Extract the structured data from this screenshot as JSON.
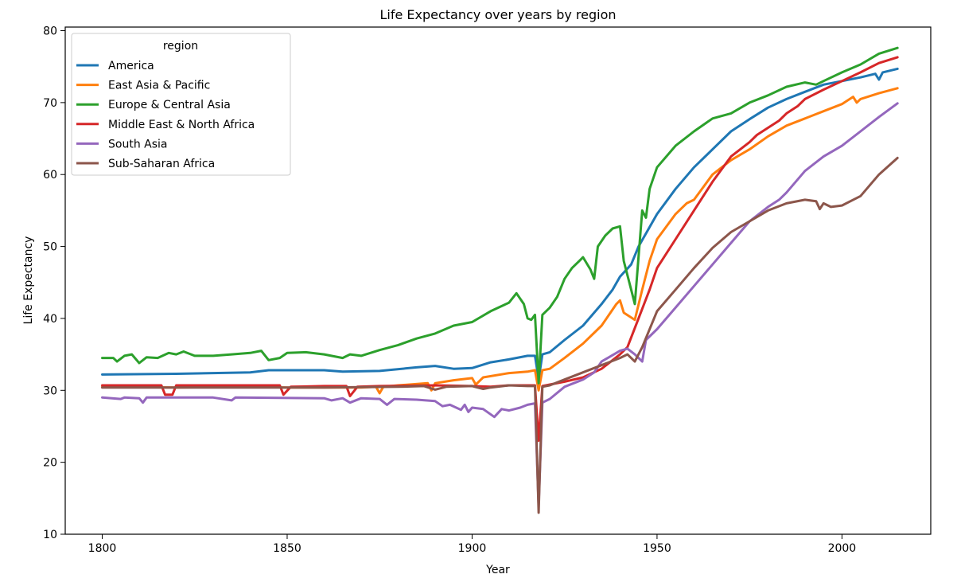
{
  "chart_data": {
    "type": "line",
    "title": "Life Expectancy over years by region",
    "xlabel": "Year",
    "ylabel": "Life Expectancy",
    "xlim": [
      1790,
      2024
    ],
    "ylim": [
      10,
      80.5
    ],
    "xticks": [
      1800,
      1850,
      1900,
      1950,
      2000
    ],
    "yticks": [
      10,
      20,
      30,
      40,
      50,
      60,
      70,
      80
    ],
    "grid": false,
    "legend": {
      "title": "region",
      "placement": "top-left"
    },
    "series": [
      {
        "name": "America",
        "color": "#1f77b4",
        "points": [
          [
            1800,
            32.2
          ],
          [
            1820,
            32.3
          ],
          [
            1840,
            32.5
          ],
          [
            1845,
            32.8
          ],
          [
            1860,
            32.8
          ],
          [
            1865,
            32.6
          ],
          [
            1875,
            32.7
          ],
          [
            1885,
            33.2
          ],
          [
            1890,
            33.4
          ],
          [
            1895,
            33.0
          ],
          [
            1900,
            33.1
          ],
          [
            1905,
            33.9
          ],
          [
            1910,
            34.3
          ],
          [
            1915,
            34.8
          ],
          [
            1917,
            34.8
          ],
          [
            1918,
            31.5
          ],
          [
            1919,
            35.0
          ],
          [
            1921,
            35.3
          ],
          [
            1925,
            37.0
          ],
          [
            1930,
            39.0
          ],
          [
            1935,
            42.0
          ],
          [
            1938,
            44.0
          ],
          [
            1940,
            45.8
          ],
          [
            1943,
            47.5
          ],
          [
            1945,
            50.0
          ],
          [
            1950,
            54.5
          ],
          [
            1955,
            58.0
          ],
          [
            1960,
            61.0
          ],
          [
            1965,
            63.5
          ],
          [
            1970,
            66.0
          ],
          [
            1975,
            67.7
          ],
          [
            1980,
            69.3
          ],
          [
            1985,
            70.5
          ],
          [
            1990,
            71.5
          ],
          [
            1995,
            72.5
          ],
          [
            2000,
            73.0
          ],
          [
            2005,
            73.5
          ],
          [
            2009,
            74.0
          ],
          [
            2010,
            73.2
          ],
          [
            2011,
            74.2
          ],
          [
            2015,
            74.7
          ]
        ]
      },
      {
        "name": "East Asia & Pacific",
        "color": "#ff7f0e",
        "points": [
          [
            1800,
            30.5
          ],
          [
            1820,
            30.4
          ],
          [
            1840,
            30.5
          ],
          [
            1850,
            30.4
          ],
          [
            1860,
            30.4
          ],
          [
            1870,
            30.4
          ],
          [
            1874,
            30.5
          ],
          [
            1875,
            29.6
          ],
          [
            1876,
            30.5
          ],
          [
            1880,
            30.7
          ],
          [
            1888,
            31.0
          ],
          [
            1889,
            30.0
          ],
          [
            1890,
            31.0
          ],
          [
            1895,
            31.4
          ],
          [
            1900,
            31.7
          ],
          [
            1901,
            30.8
          ],
          [
            1903,
            31.8
          ],
          [
            1910,
            32.4
          ],
          [
            1915,
            32.6
          ],
          [
            1917,
            32.8
          ],
          [
            1918,
            30.0
          ],
          [
            1919,
            32.8
          ],
          [
            1921,
            33.0
          ],
          [
            1925,
            34.5
          ],
          [
            1930,
            36.5
          ],
          [
            1935,
            39.0
          ],
          [
            1939,
            42.0
          ],
          [
            1940,
            42.5
          ],
          [
            1941,
            40.8
          ],
          [
            1944,
            39.8
          ],
          [
            1946,
            44.0
          ],
          [
            1948,
            48.0
          ],
          [
            1950,
            51.0
          ],
          [
            1955,
            54.5
          ],
          [
            1958,
            56.0
          ],
          [
            1960,
            56.5
          ],
          [
            1965,
            60.0
          ],
          [
            1970,
            62.0
          ],
          [
            1975,
            63.5
          ],
          [
            1980,
            65.3
          ],
          [
            1985,
            66.8
          ],
          [
            1990,
            67.8
          ],
          [
            1995,
            68.8
          ],
          [
            2000,
            69.8
          ],
          [
            2003,
            70.8
          ],
          [
            2004,
            70.0
          ],
          [
            2005,
            70.5
          ],
          [
            2010,
            71.3
          ],
          [
            2015,
            72.0
          ]
        ]
      },
      {
        "name": "Europe & Central Asia",
        "color": "#2ca02c",
        "points": [
          [
            1800,
            34.5
          ],
          [
            1803,
            34.5
          ],
          [
            1804,
            34.0
          ],
          [
            1806,
            34.8
          ],
          [
            1808,
            35.0
          ],
          [
            1810,
            33.8
          ],
          [
            1812,
            34.6
          ],
          [
            1815,
            34.5
          ],
          [
            1818,
            35.2
          ],
          [
            1820,
            35.0
          ],
          [
            1822,
            35.4
          ],
          [
            1825,
            34.8
          ],
          [
            1830,
            34.8
          ],
          [
            1835,
            35.0
          ],
          [
            1840,
            35.2
          ],
          [
            1843,
            35.5
          ],
          [
            1845,
            34.2
          ],
          [
            1848,
            34.5
          ],
          [
            1850,
            35.2
          ],
          [
            1855,
            35.3
          ],
          [
            1860,
            35.0
          ],
          [
            1865,
            34.5
          ],
          [
            1867,
            35.0
          ],
          [
            1870,
            34.8
          ],
          [
            1875,
            35.6
          ],
          [
            1880,
            36.3
          ],
          [
            1885,
            37.2
          ],
          [
            1890,
            37.9
          ],
          [
            1895,
            39.0
          ],
          [
            1900,
            39.5
          ],
          [
            1905,
            41.0
          ],
          [
            1910,
            42.2
          ],
          [
            1912,
            43.5
          ],
          [
            1914,
            42.0
          ],
          [
            1915,
            40.0
          ],
          [
            1916,
            39.8
          ],
          [
            1917,
            40.5
          ],
          [
            1918,
            31.0
          ],
          [
            1919,
            40.5
          ],
          [
            1921,
            41.5
          ],
          [
            1923,
            43.0
          ],
          [
            1925,
            45.5
          ],
          [
            1927,
            47.0
          ],
          [
            1929,
            48.0
          ],
          [
            1930,
            48.5
          ],
          [
            1932,
            46.8
          ],
          [
            1933,
            45.5
          ],
          [
            1934,
            50.0
          ],
          [
            1936,
            51.5
          ],
          [
            1938,
            52.5
          ],
          [
            1940,
            52.8
          ],
          [
            1941,
            48.0
          ],
          [
            1943,
            44.0
          ],
          [
            1944,
            42.0
          ],
          [
            1946,
            55.0
          ],
          [
            1947,
            54.0
          ],
          [
            1948,
            58.0
          ],
          [
            1950,
            61.0
          ],
          [
            1955,
            64.0
          ],
          [
            1960,
            66.0
          ],
          [
            1965,
            67.8
          ],
          [
            1970,
            68.5
          ],
          [
            1975,
            70.0
          ],
          [
            1980,
            71.0
          ],
          [
            1985,
            72.2
          ],
          [
            1990,
            72.8
          ],
          [
            1993,
            72.5
          ],
          [
            1995,
            73.0
          ],
          [
            2000,
            74.2
          ],
          [
            2005,
            75.3
          ],
          [
            2010,
            76.8
          ],
          [
            2015,
            77.6
          ]
        ]
      },
      {
        "name": "Middle East & North Africa",
        "color": "#d62728",
        "points": [
          [
            1800,
            30.7
          ],
          [
            1816,
            30.7
          ],
          [
            1817,
            29.4
          ],
          [
            1819,
            29.4
          ],
          [
            1820,
            30.7
          ],
          [
            1830,
            30.7
          ],
          [
            1848,
            30.7
          ],
          [
            1849,
            29.4
          ],
          [
            1851,
            30.5
          ],
          [
            1860,
            30.6
          ],
          [
            1866,
            30.6
          ],
          [
            1867,
            29.2
          ],
          [
            1869,
            30.5
          ],
          [
            1875,
            30.6
          ],
          [
            1890,
            30.7
          ],
          [
            1900,
            30.6
          ],
          [
            1905,
            30.5
          ],
          [
            1910,
            30.7
          ],
          [
            1915,
            30.7
          ],
          [
            1917,
            30.7
          ],
          [
            1918,
            23.0
          ],
          [
            1919,
            30.6
          ],
          [
            1925,
            31.2
          ],
          [
            1930,
            31.8
          ],
          [
            1935,
            33.0
          ],
          [
            1940,
            35.0
          ],
          [
            1942,
            36.0
          ],
          [
            1945,
            40.0
          ],
          [
            1948,
            44.0
          ],
          [
            1950,
            47.0
          ],
          [
            1955,
            51.0
          ],
          [
            1960,
            55.0
          ],
          [
            1965,
            59.0
          ],
          [
            1970,
            62.5
          ],
          [
            1975,
            64.5
          ],
          [
            1977,
            65.5
          ],
          [
            1980,
            66.5
          ],
          [
            1983,
            67.5
          ],
          [
            1985,
            68.5
          ],
          [
            1988,
            69.5
          ],
          [
            1990,
            70.5
          ],
          [
            1995,
            71.8
          ],
          [
            2000,
            73.0
          ],
          [
            2005,
            74.2
          ],
          [
            2010,
            75.5
          ],
          [
            2015,
            76.3
          ]
        ]
      },
      {
        "name": "South Asia",
        "color": "#9467bd",
        "points": [
          [
            1800,
            29.0
          ],
          [
            1805,
            28.8
          ],
          [
            1806,
            29.0
          ],
          [
            1810,
            28.9
          ],
          [
            1811,
            28.3
          ],
          [
            1812,
            29.0
          ],
          [
            1830,
            29.0
          ],
          [
            1835,
            28.6
          ],
          [
            1836,
            29.0
          ],
          [
            1860,
            28.9
          ],
          [
            1862,
            28.6
          ],
          [
            1865,
            28.9
          ],
          [
            1867,
            28.3
          ],
          [
            1870,
            28.9
          ],
          [
            1875,
            28.8
          ],
          [
            1877,
            28.0
          ],
          [
            1879,
            28.8
          ],
          [
            1885,
            28.7
          ],
          [
            1890,
            28.5
          ],
          [
            1892,
            27.8
          ],
          [
            1894,
            28.0
          ],
          [
            1897,
            27.3
          ],
          [
            1898,
            28.0
          ],
          [
            1899,
            27.0
          ],
          [
            1900,
            27.6
          ],
          [
            1903,
            27.4
          ],
          [
            1906,
            26.3
          ],
          [
            1908,
            27.4
          ],
          [
            1910,
            27.2
          ],
          [
            1913,
            27.6
          ],
          [
            1915,
            28.0
          ],
          [
            1917,
            28.2
          ],
          [
            1918,
            14.0
          ],
          [
            1919,
            28.3
          ],
          [
            1921,
            28.8
          ],
          [
            1925,
            30.5
          ],
          [
            1930,
            31.5
          ],
          [
            1933,
            32.5
          ],
          [
            1935,
            34.0
          ],
          [
            1940,
            35.5
          ],
          [
            1942,
            35.8
          ],
          [
            1944,
            35.0
          ],
          [
            1946,
            34.0
          ],
          [
            1947,
            37.0
          ],
          [
            1950,
            38.5
          ],
          [
            1955,
            41.5
          ],
          [
            1960,
            44.5
          ],
          [
            1965,
            47.5
          ],
          [
            1970,
            50.5
          ],
          [
            1975,
            53.5
          ],
          [
            1980,
            55.5
          ],
          [
            1983,
            56.5
          ],
          [
            1985,
            57.5
          ],
          [
            1990,
            60.5
          ],
          [
            1995,
            62.5
          ],
          [
            2000,
            64.0
          ],
          [
            2005,
            66.0
          ],
          [
            2010,
            68.0
          ],
          [
            2015,
            69.9
          ]
        ]
      },
      {
        "name": "Sub-Saharan Africa",
        "color": "#8c564b",
        "points": [
          [
            1800,
            30.4
          ],
          [
            1830,
            30.4
          ],
          [
            1860,
            30.4
          ],
          [
            1880,
            30.5
          ],
          [
            1887,
            30.6
          ],
          [
            1890,
            30.1
          ],
          [
            1893,
            30.5
          ],
          [
            1900,
            30.6
          ],
          [
            1903,
            30.2
          ],
          [
            1905,
            30.4
          ],
          [
            1910,
            30.7
          ],
          [
            1915,
            30.6
          ],
          [
            1917,
            30.6
          ],
          [
            1918,
            13.0
          ],
          [
            1919,
            30.5
          ],
          [
            1921,
            30.7
          ],
          [
            1925,
            31.5
          ],
          [
            1930,
            32.5
          ],
          [
            1935,
            33.5
          ],
          [
            1940,
            34.5
          ],
          [
            1942,
            35.0
          ],
          [
            1944,
            34.0
          ],
          [
            1946,
            36.0
          ],
          [
            1950,
            41.0
          ],
          [
            1955,
            44.0
          ],
          [
            1960,
            47.0
          ],
          [
            1965,
            49.8
          ],
          [
            1970,
            52.0
          ],
          [
            1975,
            53.5
          ],
          [
            1980,
            55.0
          ],
          [
            1985,
            56.0
          ],
          [
            1990,
            56.5
          ],
          [
            1993,
            56.3
          ],
          [
            1994,
            55.2
          ],
          [
            1995,
            56.0
          ],
          [
            1997,
            55.5
          ],
          [
            2000,
            55.7
          ],
          [
            2005,
            57.0
          ],
          [
            2010,
            60.0
          ],
          [
            2015,
            62.3
          ]
        ]
      }
    ]
  }
}
